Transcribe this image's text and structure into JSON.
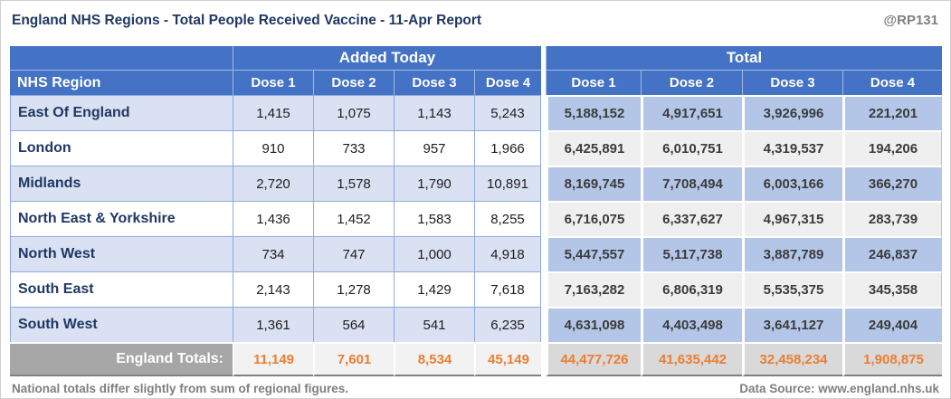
{
  "title": "England NHS Regions - Total People Received Vaccine - 11-Apr Report",
  "watermark": "@RP131",
  "colors": {
    "header_blue": "#4472C4",
    "row_alt_blue": "#D9E1F2",
    "total_alt_blue": "#B4C6E7",
    "total_alt_gray": "#EFEFEF",
    "totals_label_gray": "#A6A6A6",
    "totals_added_bg": "#F2F2F2",
    "totals_total_bg": "#D9D9D9",
    "accent_orange": "#ED7D31",
    "navy_text": "#1F3864",
    "gray_text": "#7F7F7F"
  },
  "chart_data": {
    "type": "table",
    "title": "England NHS Regions - Total People Received Vaccine - 11-Apr Report",
    "region_header": "NHS Region",
    "groups": [
      {
        "label": "Added Today",
        "columns": [
          "Dose 1",
          "Dose 2",
          "Dose 3",
          "Dose 4"
        ]
      },
      {
        "label": "Total",
        "columns": [
          "Dose 1",
          "Dose 2",
          "Dose 3",
          "Dose 4"
        ]
      }
    ],
    "rows": [
      {
        "region": "East Of England",
        "added": [
          "1,415",
          "1,075",
          "1,143",
          "5,243"
        ],
        "total": [
          "5,188,152",
          "4,917,651",
          "3,926,996",
          "221,201"
        ]
      },
      {
        "region": "London",
        "added": [
          "910",
          "733",
          "957",
          "1,966"
        ],
        "total": [
          "6,425,891",
          "6,010,751",
          "4,319,537",
          "194,206"
        ]
      },
      {
        "region": "Midlands",
        "added": [
          "2,720",
          "1,578",
          "1,790",
          "10,891"
        ],
        "total": [
          "8,169,745",
          "7,708,494",
          "6,003,166",
          "366,270"
        ]
      },
      {
        "region": "North East & Yorkshire",
        "added": [
          "1,436",
          "1,452",
          "1,583",
          "8,255"
        ],
        "total": [
          "6,716,075",
          "6,337,627",
          "4,967,315",
          "283,739"
        ]
      },
      {
        "region": "North West",
        "added": [
          "734",
          "747",
          "1,000",
          "4,918"
        ],
        "total": [
          "5,447,557",
          "5,117,738",
          "3,887,789",
          "246,837"
        ]
      },
      {
        "region": "South East",
        "added": [
          "2,143",
          "1,278",
          "1,429",
          "7,618"
        ],
        "total": [
          "7,163,282",
          "6,806,319",
          "5,535,375",
          "345,358"
        ]
      },
      {
        "region": "South West",
        "added": [
          "1,361",
          "564",
          "541",
          "6,235"
        ],
        "total": [
          "4,631,098",
          "4,403,498",
          "3,641,127",
          "249,404"
        ]
      }
    ],
    "totals": {
      "label": "England Totals:",
      "added": [
        "11,149",
        "7,601",
        "8,534",
        "45,149"
      ],
      "total": [
        "44,477,726",
        "41,635,442",
        "32,458,234",
        "1,908,875"
      ]
    }
  },
  "footer": {
    "left": "National totals differ slightly from sum of regional figures.",
    "right": "Data Source: www.england.nhs.uk"
  }
}
